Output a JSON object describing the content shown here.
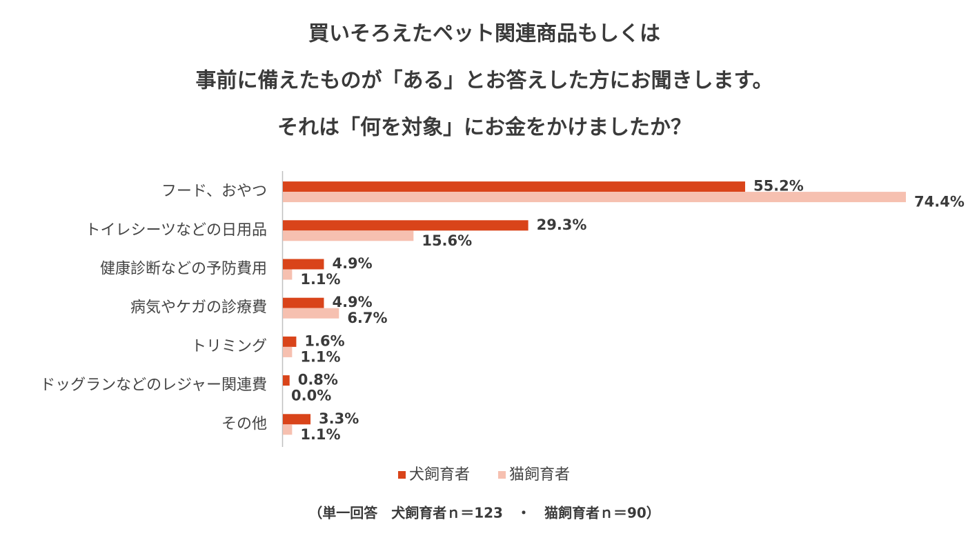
{
  "chart_data": {
    "type": "bar",
    "orientation": "horizontal",
    "title": [
      "買いそろえたペット関連商品もしくは",
      "事前に備えたものが「ある」とお答えした方にお聞きします。",
      "それは「何を対象」にお金をかけましたか？"
    ],
    "categories": [
      "フード、おやつ",
      "トイレシーツなどの日用品",
      "健康診断などの予防費用",
      "病気やケガの診療費",
      "トリミング",
      "ドッグランなどのレジャー関連費",
      "その他"
    ],
    "series": [
      {
        "name": "犬飼育者",
        "color": "#d9441a",
        "values": [
          55.2,
          29.3,
          4.9,
          4.9,
          1.6,
          0.8,
          3.3
        ],
        "value_labels": [
          "55.2%",
          "29.3%",
          "4.9%",
          "4.9%",
          "1.6%",
          "0.8%",
          "3.3%"
        ]
      },
      {
        "name": "猫飼育者",
        "color": "#f6c0b0",
        "values": [
          74.4,
          15.6,
          1.1,
          6.7,
          1.1,
          0.0,
          1.1
        ],
        "value_labels": [
          "74.4%",
          "15.6%",
          "1.1%",
          "6.7%",
          "1.1%",
          "0.0%",
          "1.1%"
        ]
      }
    ],
    "legend": "bottom",
    "note": "（単一回答　犬飼育者ｎ＝123　・　猫飼育者ｎ＝90）"
  }
}
